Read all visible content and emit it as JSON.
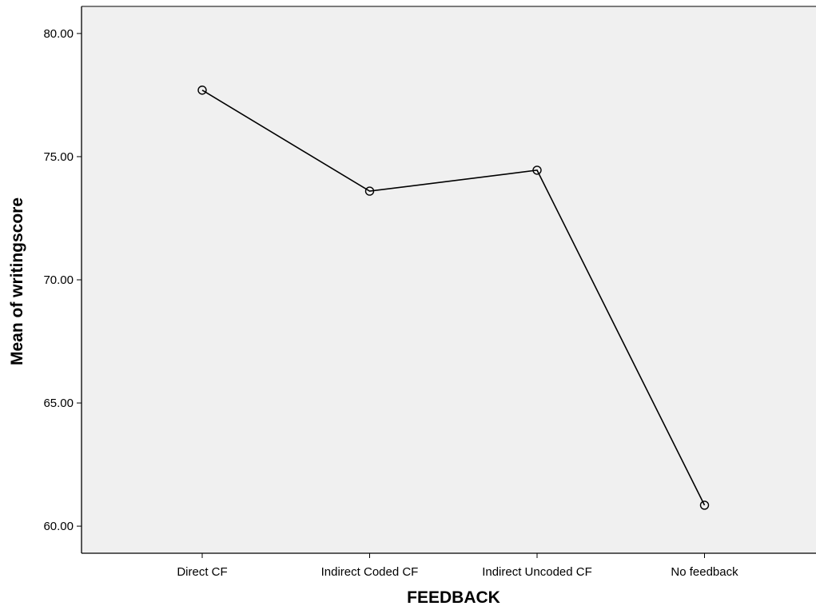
{
  "chart_data": {
    "type": "line",
    "title": "",
    "xlabel": "FEEDBACK",
    "ylabel": "Mean of writingscore",
    "categories": [
      "Direct CF",
      "Indirect Coded CF",
      "Indirect Uncoded CF",
      "No feedback"
    ],
    "series": [
      {
        "values": [
          77.7,
          73.6,
          74.45,
          60.85
        ]
      }
    ],
    "y_ticks": [
      60,
      65,
      70,
      75,
      80
    ],
    "y_tick_labels": [
      "60.00",
      "65.00",
      "70.00",
      "75.00",
      "80.00"
    ],
    "ylim": [
      58.9,
      81.1
    ],
    "grid": false,
    "legend": "none",
    "marker": "open-circle",
    "colors": {
      "plot_background": "#f0f0f0",
      "line": "#000000",
      "axis": "#000000"
    }
  }
}
